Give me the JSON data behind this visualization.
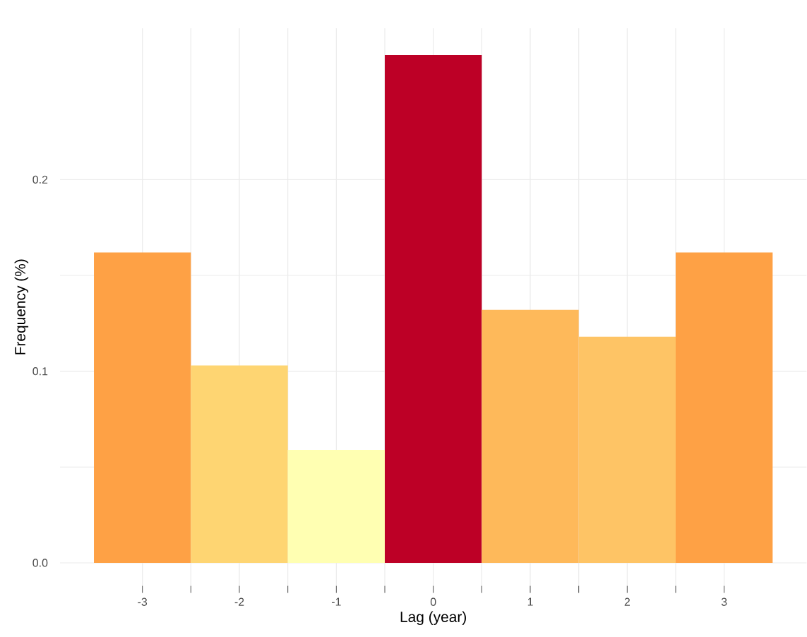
{
  "chart_data": {
    "type": "histogram",
    "xlabel": "Lag (year)",
    "ylabel": "Frequency (%)",
    "bins": [
      -3.5,
      -2.5,
      -1.5,
      -0.5,
      0.5,
      1.5,
      2.5,
      3.5
    ],
    "values": [
      0.162,
      0.103,
      0.059,
      0.265,
      0.132,
      0.118,
      0.162
    ],
    "colors": [
      "#fea145",
      "#fed572",
      "#ffffb2",
      "#bd0026",
      "#feb95a",
      "#fec465",
      "#fea145"
    ],
    "xlim": [
      -3.85,
      3.85
    ],
    "ylim": [
      -0.012,
      0.279
    ],
    "xticks": [
      -3,
      -2,
      -1,
      0,
      1,
      2,
      3
    ],
    "yticks": [
      {
        "value": 0,
        "label": "0.0"
      },
      0.1,
      0.2
    ],
    "grid": true
  }
}
